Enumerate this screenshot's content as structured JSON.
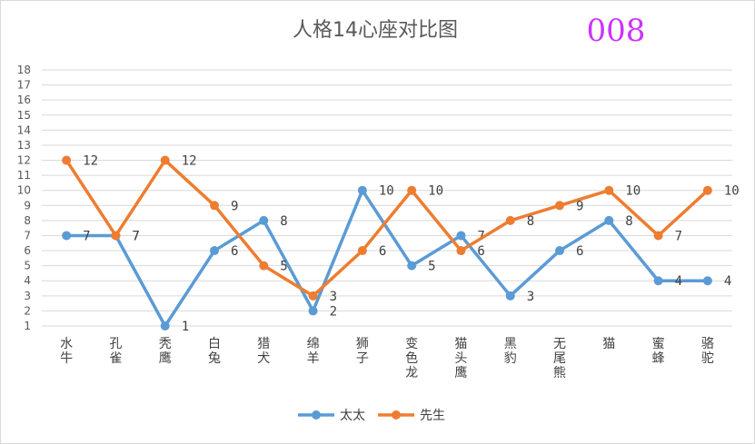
{
  "chart_data": {
    "type": "line",
    "title": "人格14心座对比图",
    "badge": "008",
    "xlabel": "",
    "ylabel": "",
    "ylim": [
      1,
      18
    ],
    "yticks": [
      1,
      2,
      3,
      4,
      5,
      6,
      7,
      8,
      9,
      10,
      11,
      12,
      13,
      14,
      15,
      16,
      17,
      18
    ],
    "grid": true,
    "legend_position": "bottom",
    "categories": [
      "水牛",
      "孔雀",
      "秃鹰",
      "白兔",
      "猎犬",
      "绵羊",
      "狮子",
      "变色龙",
      "猫头鹰",
      "黑豹",
      "无尾熊",
      "猫",
      "蜜蜂",
      "骆驼"
    ],
    "series": [
      {
        "name": "太太",
        "color": "#5b9bd5",
        "values": [
          7,
          7,
          1,
          6,
          8,
          2,
          10,
          5,
          7,
          3,
          6,
          8,
          4,
          4
        ]
      },
      {
        "name": "先生",
        "color": "#ed7d31",
        "values": [
          12,
          7,
          12,
          9,
          5,
          3,
          6,
          10,
          6,
          8,
          9,
          10,
          7,
          10
        ]
      }
    ]
  }
}
